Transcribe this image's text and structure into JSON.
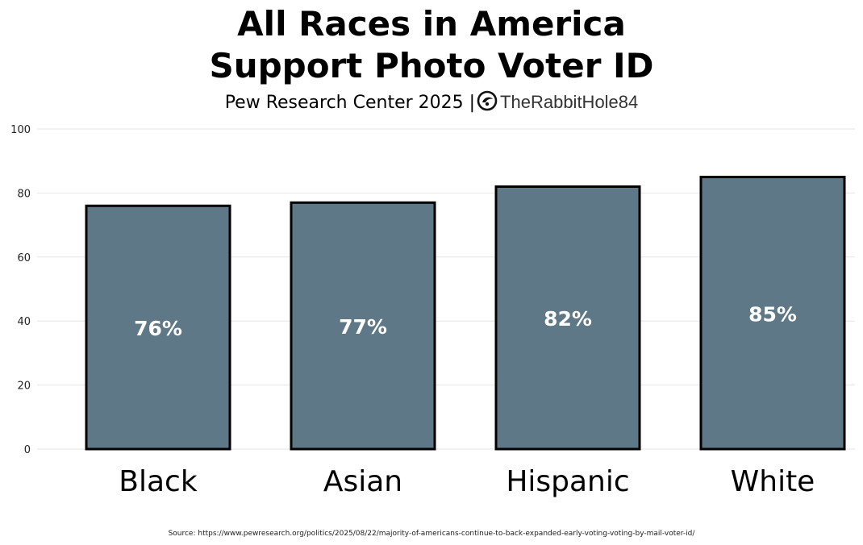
{
  "title_line1": "All Races in America",
  "title_line2": "Support Photo Voter ID",
  "subtitle": {
    "text": "Pew Research Center 2025 |",
    "credit": "TheRabbitHole84",
    "logo_icon": "rabbit-hole-logo-icon"
  },
  "source": "Source: https://www.pewresearch.org/politics/2025/08/22/majority-of-americans-continue-to-back-expanded-early-voting-voting-by-mail-voter-id/",
  "colors": {
    "bar_fill": "#5e7888",
    "bar_stroke": "#000000",
    "bar_label": "#ffffff",
    "grid": "#e6e6e6"
  },
  "chart_data": {
    "type": "bar",
    "title": "All Races in America Support Photo Voter ID",
    "subtitle": "Pew Research Center 2025",
    "categories": [
      "Black",
      "Asian",
      "Hispanic",
      "White"
    ],
    "values": [
      76,
      77,
      82,
      85
    ],
    "data_labels": [
      "76%",
      "77%",
      "82%",
      "85%"
    ],
    "xlabel": "",
    "ylabel": "",
    "ylim": [
      0,
      100
    ],
    "yticks": [
      0,
      20,
      40,
      60,
      80,
      100
    ],
    "grid": true,
    "legend": "none"
  }
}
